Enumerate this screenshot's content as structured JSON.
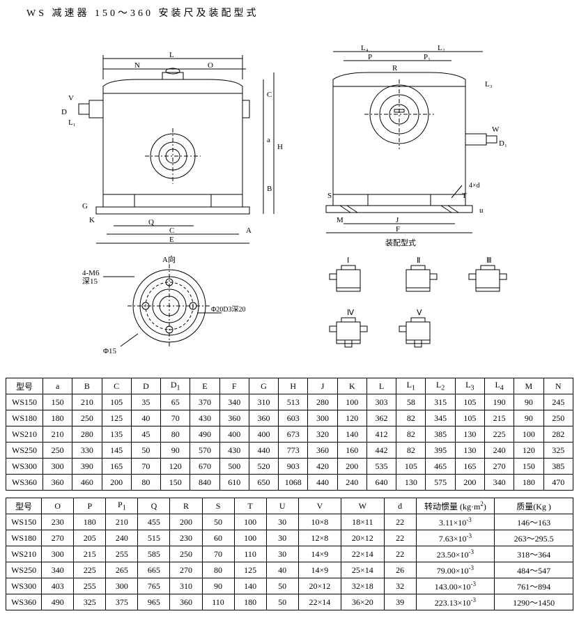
{
  "title": "WS 减速器 150～360 安装尺及装配型式",
  "diagram": {
    "labels": {
      "front_dims": [
        "L",
        "N",
        "O",
        "V",
        "D",
        "L1",
        "G",
        "K",
        "Q",
        "C",
        "A",
        "E",
        "B",
        "a",
        "H",
        "C1"
      ],
      "side_dims": [
        "L4",
        "L2",
        "P",
        "R",
        "P1",
        "L3",
        "W",
        "D1",
        "S",
        "T",
        "u",
        "4×d",
        "M",
        "J",
        "F"
      ],
      "side_caption": "装配型式",
      "flange_top": "A向",
      "flange_left": "4-M6",
      "flange_left2": "深15",
      "flange_dia": "Φ15",
      "flange_right": "Φ20D3深20",
      "config_labels": [
        "Ⅰ",
        "Ⅱ",
        "Ⅲ",
        "Ⅳ",
        "Ⅴ"
      ]
    },
    "colors": {
      "stroke": "#000000",
      "fill": "#ffffff"
    }
  },
  "table1": {
    "headers": [
      "型号",
      "a",
      "B",
      "C",
      "D",
      "D1",
      "E",
      "F",
      "G",
      "H",
      "J",
      "K",
      "L",
      "L1",
      "L2",
      "L3",
      "L4",
      "M",
      "N"
    ],
    "rows": [
      [
        "WS150",
        "150",
        "210",
        "105",
        "35",
        "65",
        "370",
        "340",
        "310",
        "513",
        "280",
        "100",
        "303",
        "58",
        "315",
        "105",
        "190",
        "90",
        "245"
      ],
      [
        "WS180",
        "180",
        "250",
        "125",
        "40",
        "70",
        "430",
        "360",
        "360",
        "603",
        "300",
        "120",
        "362",
        "82",
        "345",
        "105",
        "215",
        "90",
        "250"
      ],
      [
        "WS210",
        "210",
        "280",
        "135",
        "45",
        "80",
        "490",
        "400",
        "400",
        "673",
        "320",
        "140",
        "412",
        "82",
        "385",
        "130",
        "225",
        "100",
        "282"
      ],
      [
        "WS250",
        "250",
        "330",
        "145",
        "50",
        "90",
        "570",
        "430",
        "440",
        "773",
        "360",
        "160",
        "442",
        "82",
        "395",
        "130",
        "240",
        "120",
        "325"
      ],
      [
        "WS300",
        "300",
        "390",
        "165",
        "70",
        "120",
        "670",
        "500",
        "520",
        "903",
        "420",
        "200",
        "535",
        "105",
        "465",
        "165",
        "270",
        "150",
        "385"
      ],
      [
        "WS360",
        "360",
        "460",
        "200",
        "80",
        "150",
        "840",
        "610",
        "650",
        "1068",
        "440",
        "240",
        "640",
        "130",
        "575",
        "200",
        "340",
        "180",
        "470"
      ]
    ]
  },
  "table2": {
    "headers": [
      "型号",
      "O",
      "P",
      "P1",
      "Q",
      "R",
      "S",
      "T",
      "U",
      "V",
      "W",
      "d",
      "转动惯量 (kg·m²)",
      "质量(Kg )"
    ],
    "rows": [
      [
        "WS150",
        "230",
        "180",
        "210",
        "455",
        "200",
        "50",
        "100",
        "30",
        "10×8",
        "18×11",
        "22",
        "3.11×10⁻³",
        "146～163"
      ],
      [
        "WS180",
        "270",
        "205",
        "240",
        "515",
        "230",
        "60",
        "100",
        "30",
        "12×8",
        "20×12",
        "22",
        "7.63×10⁻³",
        "263～295.5"
      ],
      [
        "WS210",
        "300",
        "215",
        "255",
        "585",
        "250",
        "70",
        "110",
        "30",
        "14×9",
        "22×14",
        "22",
        "23.50×10⁻³",
        "318～364"
      ],
      [
        "WS250",
        "340",
        "225",
        "265",
        "665",
        "270",
        "80",
        "125",
        "40",
        "14×9",
        "25×14",
        "26",
        "79.00×10⁻³",
        "484～547"
      ],
      [
        "WS300",
        "403",
        "255",
        "300",
        "765",
        "310",
        "90",
        "140",
        "50",
        "20×12",
        "32×18",
        "32",
        "143.00×10⁻³",
        "761～894"
      ],
      [
        "WS360",
        "490",
        "325",
        "375",
        "965",
        "360",
        "110",
        "180",
        "50",
        "22×14",
        "36×20",
        "39",
        "223.13×10⁻³",
        "1290～1450"
      ]
    ]
  }
}
